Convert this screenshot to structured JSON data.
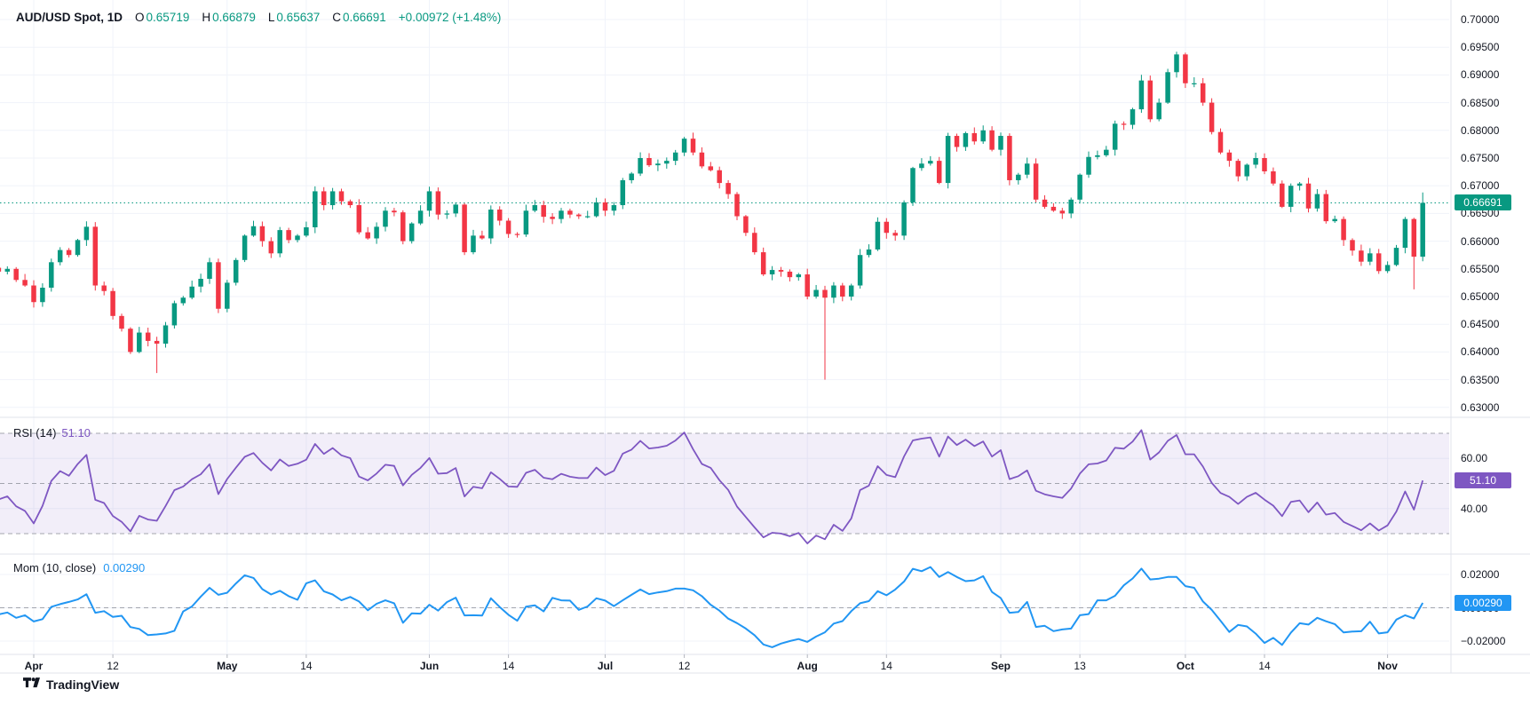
{
  "header": {
    "symbol": "AUD/USD Spot, 1D",
    "o_label": "O",
    "o": "0.65719",
    "h_label": "H",
    "h": "0.66879",
    "l_label": "L",
    "l": "0.65637",
    "c_label": "C",
    "c": "0.66691",
    "change": "+0.00972 (+1.48%)"
  },
  "panes": {
    "rsi": {
      "label": "RSI (14)",
      "value": "51.10"
    },
    "mom": {
      "label": "Mom (10, close)",
      "value": "0.00290"
    }
  },
  "badges": {
    "price": "0.66691",
    "rsi": "51.10",
    "mom": "0.00290"
  },
  "footer": {
    "brand": "TradingView"
  },
  "colors": {
    "up": "#089981",
    "down": "#F23645",
    "rsi_line": "#7E57C2",
    "rsi_band": "rgba(126,87,194,0.10)",
    "mom_line": "#2196F3",
    "grid": "#F0F3FA",
    "separator": "#E0E3EB",
    "dash": "#9598A1",
    "text": "#131722",
    "price_line": "#089981"
  },
  "chart_data": {
    "type": "candlestick",
    "title": "AUD/USD Spot, 1D",
    "legend_ohlc": {
      "open": 0.65719,
      "high": 0.66879,
      "low": 0.65637,
      "close": 0.66691,
      "change": 0.00972,
      "change_pct": 1.48
    },
    "price_axis": {
      "ticks": [
        0.7,
        0.695,
        0.69,
        0.685,
        0.68,
        0.675,
        0.67,
        0.665,
        0.66,
        0.655,
        0.65,
        0.645,
        0.64,
        0.635,
        0.63
      ]
    },
    "time_axis": [
      {
        "text": "Apr",
        "pos": 14,
        "bold": true
      },
      {
        "text": "12",
        "pos": 23,
        "bold": false
      },
      {
        "text": "May",
        "pos": 36,
        "bold": true
      },
      {
        "text": "14",
        "pos": 45,
        "bold": false
      },
      {
        "text": "Jun",
        "pos": 59,
        "bold": true
      },
      {
        "text": "14",
        "pos": 68,
        "bold": false
      },
      {
        "text": "Jul",
        "pos": 79,
        "bold": true
      },
      {
        "text": "12",
        "pos": 88,
        "bold": false
      },
      {
        "text": "Aug",
        "pos": 102,
        "bold": true
      },
      {
        "text": "14",
        "pos": 111,
        "bold": false
      },
      {
        "text": "Sep",
        "pos": 124,
        "bold": true
      },
      {
        "text": "13",
        "pos": 133,
        "bold": false
      },
      {
        "text": "Oct",
        "pos": 145,
        "bold": true
      },
      {
        "text": "14",
        "pos": 154,
        "bold": false
      },
      {
        "text": "Nov",
        "pos": 168,
        "bold": true
      }
    ],
    "closes": [
      0.6585,
      0.6578,
      0.659,
      0.6565,
      0.6572,
      0.6584,
      0.6556,
      0.6562,
      0.654,
      0.6552,
      0.6545,
      0.655,
      0.653,
      0.652,
      0.649,
      0.6516,
      0.6562,
      0.6584,
      0.6575,
      0.6602,
      0.6626,
      0.652,
      0.651,
      0.6465,
      0.6442,
      0.64,
      0.6435,
      0.642,
      0.6415,
      0.6448,
      0.6488,
      0.6498,
      0.6518,
      0.6532,
      0.6562,
      0.6478,
      0.6525,
      0.6566,
      0.661,
      0.6627,
      0.66,
      0.6578,
      0.662,
      0.6602,
      0.661,
      0.6625,
      0.669,
      0.6665,
      0.669,
      0.6672,
      0.6665,
      0.6616,
      0.6605,
      0.6626,
      0.6655,
      0.6652,
      0.66,
      0.6632,
      0.6655,
      0.669,
      0.6648,
      0.665,
      0.6666,
      0.658,
      0.661,
      0.6605,
      0.6657,
      0.6637,
      0.6613,
      0.6612,
      0.6655,
      0.6665,
      0.6644,
      0.664,
      0.6655,
      0.6648,
      0.6645,
      0.6645,
      0.667,
      0.6655,
      0.6665,
      0.671,
      0.6722,
      0.675,
      0.6737,
      0.674,
      0.6745,
      0.676,
      0.6785,
      0.676,
      0.6735,
      0.6728,
      0.6705,
      0.6685,
      0.6645,
      0.6615,
      0.658,
      0.654,
      0.6548,
      0.6545,
      0.6535,
      0.654,
      0.65,
      0.6512,
      0.6498,
      0.652,
      0.65,
      0.652,
      0.6575,
      0.6585,
      0.6635,
      0.6615,
      0.661,
      0.667,
      0.6732,
      0.674,
      0.6745,
      0.6705,
      0.679,
      0.677,
      0.6795,
      0.678,
      0.68,
      0.6765,
      0.679,
      0.671,
      0.672,
      0.674,
      0.6675,
      0.6662,
      0.6655,
      0.665,
      0.6675,
      0.672,
      0.6752,
      0.6755,
      0.6765,
      0.6812,
      0.681,
      0.6838,
      0.689,
      0.682,
      0.685,
      0.6905,
      0.6937,
      0.6885,
      0.6885,
      0.685,
      0.6797,
      0.676,
      0.6745,
      0.6717,
      0.6738,
      0.675,
      0.6726,
      0.6704,
      0.6662,
      0.67,
      0.6704,
      0.6659,
      0.6685,
      0.6636,
      0.664,
      0.6602,
      0.6583,
      0.6563,
      0.6578,
      0.6546,
      0.6557,
      0.6588,
      0.664,
      0.6572,
      0.66691
    ],
    "wick_default": 0.0009,
    "overrides": {
      "28": {
        "low": 0.6362
      },
      "104": {
        "open": 0.6512,
        "low": 0.635
      },
      "144": {
        "high": 0.6942
      },
      "171": {
        "low": 0.6513
      },
      "172": {
        "open": 0.65719,
        "high": 0.66879,
        "low": 0.65637,
        "close": 0.66691
      }
    },
    "indicators": [
      {
        "name": "RSI",
        "period": 14,
        "current": 51.1,
        "levels": {
          "upper": 70,
          "middle": 50,
          "lower": 30
        },
        "axis_labels": [
          60,
          40
        ]
      },
      {
        "name": "Momentum",
        "period": 10,
        "source": "close",
        "current": 0.0029,
        "zero_line": 0,
        "axis_labels": [
          0.02,
          0,
          -0.02
        ]
      }
    ],
    "current_price_line": 0.66691
  }
}
